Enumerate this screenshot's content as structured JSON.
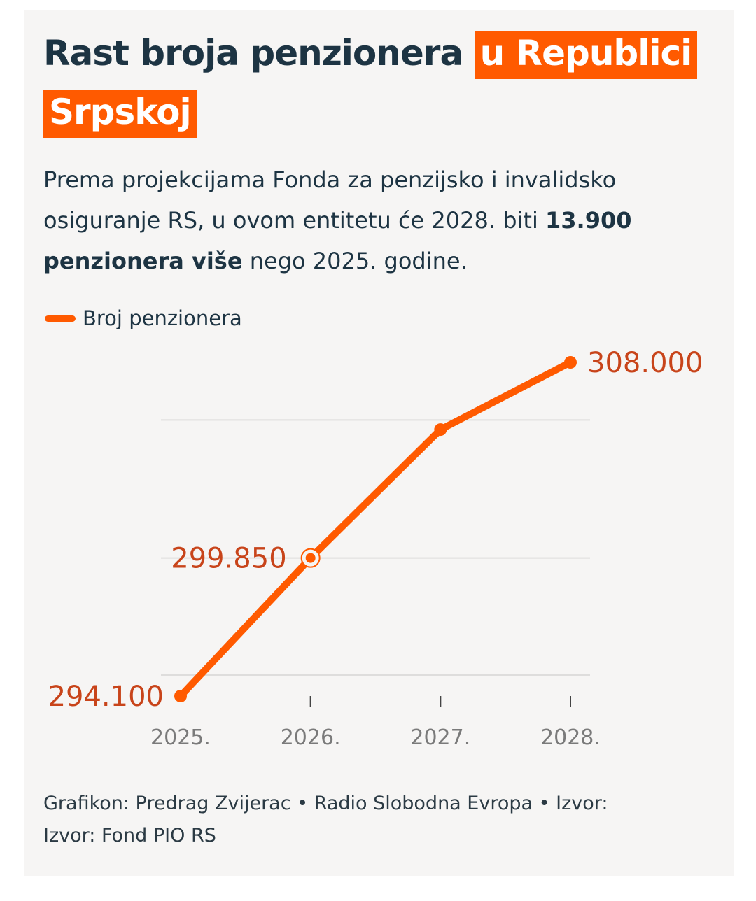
{
  "header": {
    "title_part1": "Rast broja penzionera ",
    "title_highlight": "u Republici Srpskoj",
    "subtitle_part1": "Prema projekcijama Fonda za penzijsko i invalidsko osiguranje RS, u ovom entitetu će 2028. biti ",
    "subtitle_bold": "13.900 penzionera više",
    "subtitle_part2": " nego 2025. godine."
  },
  "legend": {
    "label": "Broj penzionera"
  },
  "footer": {
    "line1": "Grafikon: Predrag Zvijerac • Radio Slobodna Evropa • Izvor:",
    "line2": "Izvor: Fond PIO RS"
  },
  "colors": {
    "accent": "#ff5a00",
    "label": "#c8441a",
    "title": "#1d3443",
    "grid": "#dedddc",
    "axis_text": "#7a7a7a"
  },
  "chart_data": {
    "type": "line",
    "categories": [
      "2025.",
      "2026.",
      "2027.",
      "2028."
    ],
    "series": [
      {
        "name": "Broj penzionera",
        "values": [
          294100,
          299850,
          305200,
          308000
        ]
      }
    ],
    "data_labels": [
      "294.100",
      "299.850",
      "",
      "308.000"
    ],
    "ylim": [
      294100,
      308000
    ],
    "gridlines": [
      294100,
      299850,
      305600
    ],
    "legend_position": "top-left",
    "grid": true
  }
}
